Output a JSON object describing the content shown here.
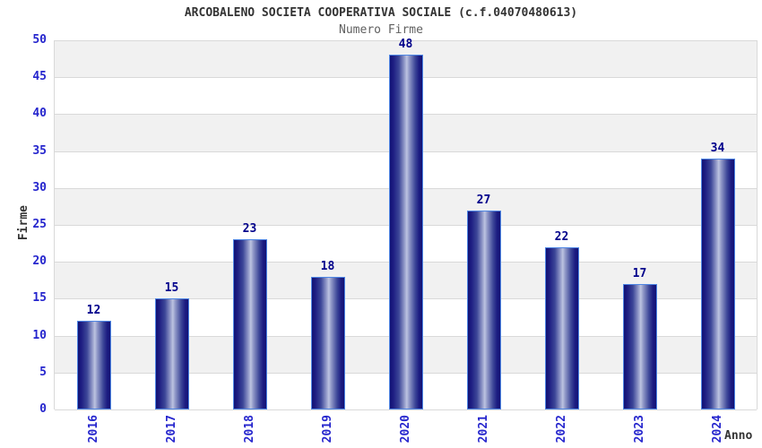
{
  "chart_data": {
    "type": "bar",
    "title": "ARCOBALENO SOCIETA COOPERATIVA SOCIALE (c.f.04070480613)",
    "subtitle": "Numero Firme",
    "xlabel": "Anno",
    "ylabel": "Firme",
    "categories": [
      "2016",
      "2017",
      "2018",
      "2019",
      "2020",
      "2021",
      "2022",
      "2023",
      "2024"
    ],
    "values": [
      12,
      15,
      23,
      18,
      48,
      27,
      22,
      17,
      34
    ],
    "ylim": [
      0,
      50
    ],
    "ytick_step": 5,
    "grid": "horizontal-bands-alternating",
    "legend": "none",
    "bar_label_position": "above",
    "colors": {
      "title": "#333333",
      "subtitle": "#606060",
      "tick_label": "#2525cd",
      "value_label": "#00008b",
      "axis_title": "#333333",
      "bar_dark": "#121275",
      "bar_mid": "#3d4798",
      "bar_light": "#bcc3e0",
      "bar_edge": "#4e86e4",
      "band_gray": "#f1f1f1",
      "band_white": "#ffffff",
      "gridline": "#d9d9d9",
      "background": "#ffffff"
    }
  }
}
